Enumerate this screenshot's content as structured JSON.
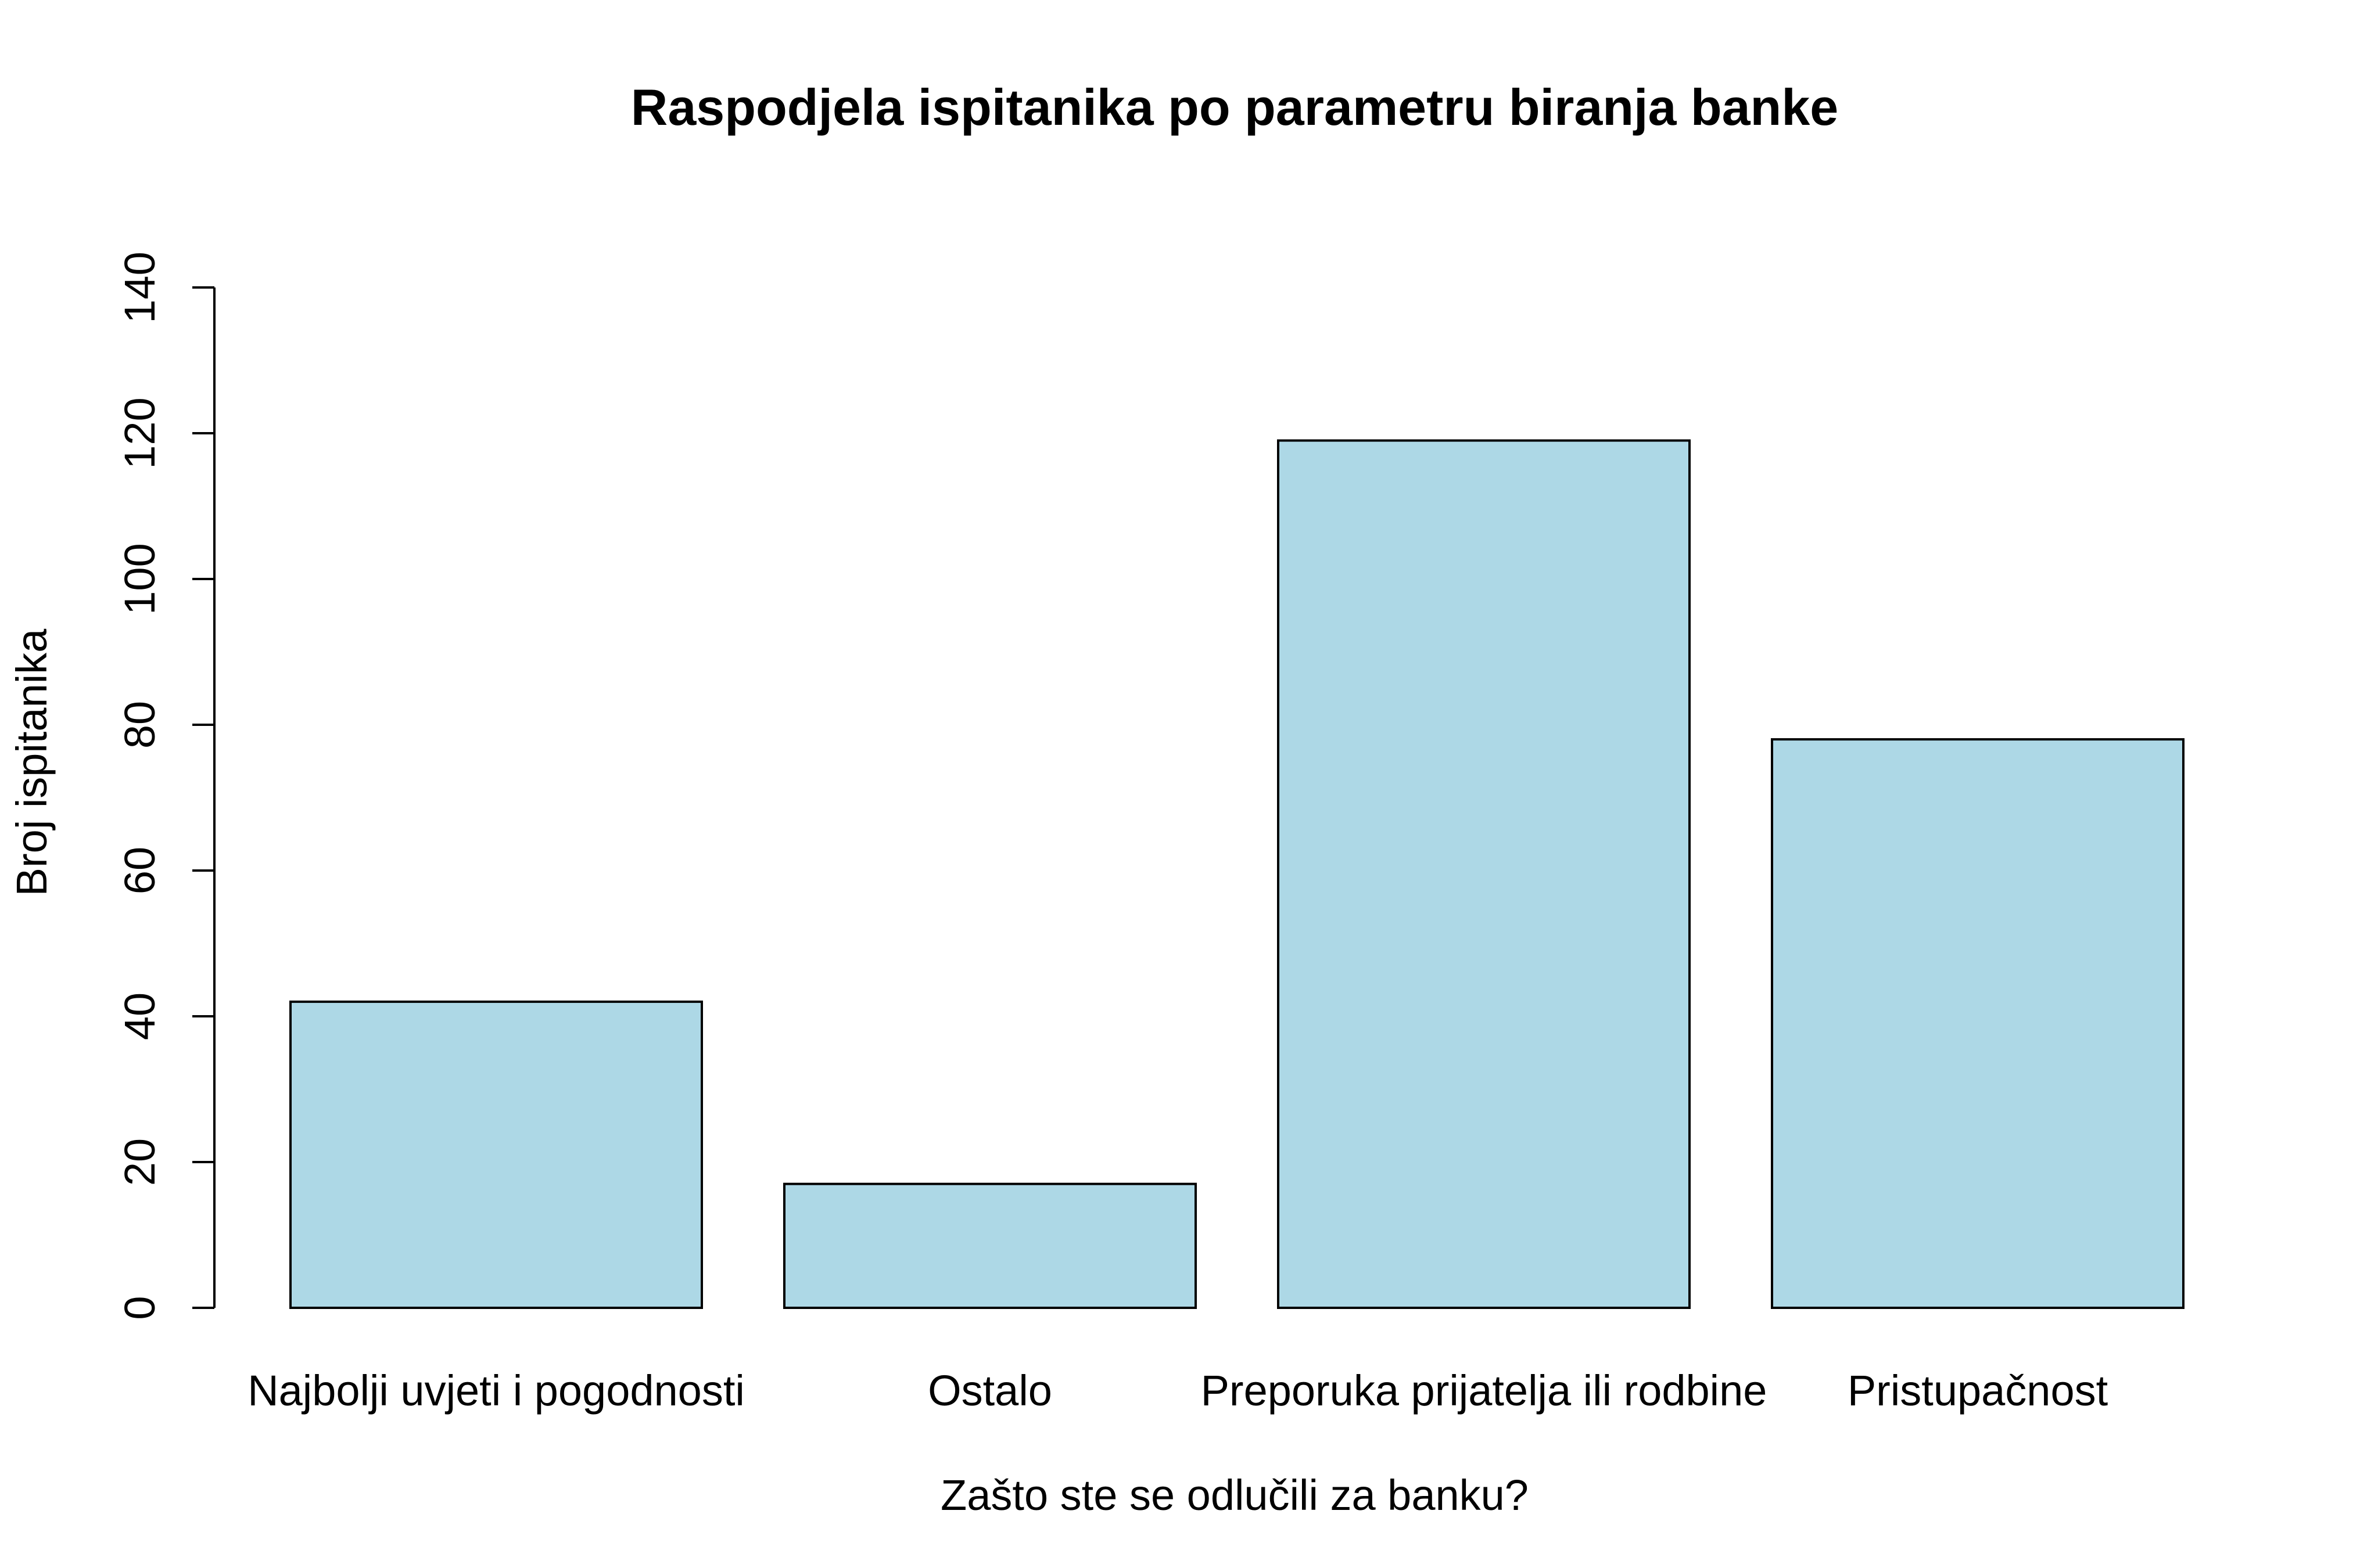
{
  "chart_data": {
    "type": "bar",
    "title": "Raspodjela ispitanika po parametru biranja banke",
    "xlabel": "Zašto ste se odlučili za banku?",
    "ylabel": "Broj ispitanika",
    "categories": [
      "Najbolji uvjeti i pogodnosti",
      "Ostalo",
      "Preporuka prijatelja ili rodbine",
      "Pristupačnost"
    ],
    "values": [
      42,
      17,
      119,
      78
    ],
    "ylim": [
      0,
      140
    ],
    "yticks": [
      "0",
      "20",
      "40",
      "60",
      "80",
      "100",
      "120",
      "140"
    ],
    "grid": false,
    "legend": "none",
    "bar_color": "#add8e6",
    "bar_border_color": "#000000"
  }
}
